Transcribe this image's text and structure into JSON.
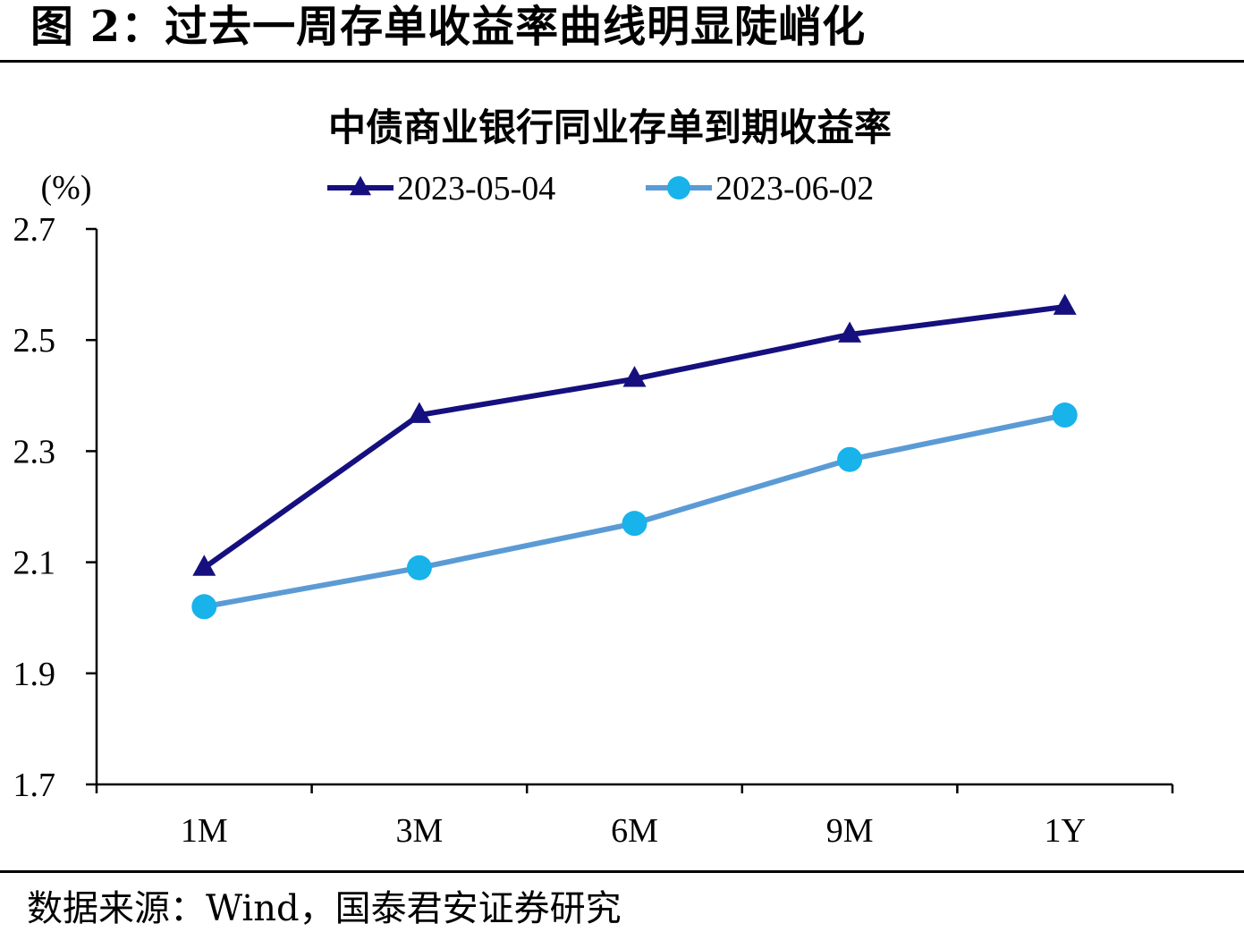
{
  "figure": {
    "title": "图 2：过去一周存单收益率曲线明显陡峭化",
    "source": "数据来源：Wind，国泰君安证券研究"
  },
  "colors": {
    "series1": "#15107e",
    "series2": "#5b9bd5",
    "series2_marker": "#17b3ea"
  },
  "chart_data": {
    "type": "line",
    "title": "中债商业银行同业存单到期收益率",
    "ylabel": "(%)",
    "xlabel": "",
    "categories": [
      "1M",
      "3M",
      "6M",
      "9M",
      "1Y"
    ],
    "ylim": [
      1.7,
      2.7
    ],
    "yticks": [
      "1.7",
      "1.9",
      "2.1",
      "2.3",
      "2.5",
      "2.7"
    ],
    "grid": false,
    "legend_position": "top",
    "series": [
      {
        "name": "2023-05-04",
        "marker": "triangle",
        "values": [
          2.09,
          2.365,
          2.43,
          2.51,
          2.56
        ]
      },
      {
        "name": "2023-06-02",
        "marker": "circle",
        "values": [
          2.02,
          2.09,
          2.17,
          2.285,
          2.365
        ]
      }
    ]
  }
}
